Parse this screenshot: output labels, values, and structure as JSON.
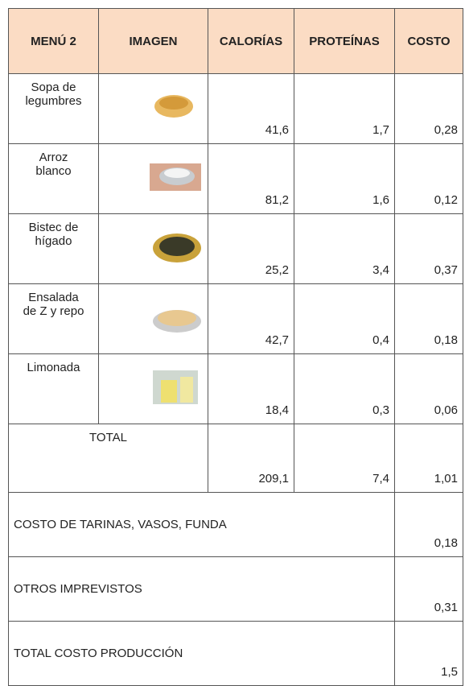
{
  "table": {
    "header": [
      "MENÚ 2",
      "IMAGEN",
      "CALORÍAS",
      "PROTEÍNAS",
      "COSTO"
    ],
    "rows": [
      {
        "name": "Sopa de legumbres",
        "calories": "41,6",
        "proteins": "1,7",
        "cost": "0,28"
      },
      {
        "name": "Arroz blanco",
        "calories": "81,2",
        "proteins": "1,6",
        "cost": "0,12"
      },
      {
        "name": "Bistec de hígado",
        "calories": "25,2",
        "proteins": "3,4",
        "cost": "0,37"
      },
      {
        "name": "Ensalada de Z y repo",
        "calories": "42,7",
        "proteins": "0,4",
        "cost": "0,18"
      },
      {
        "name": "Limonada",
        "calories": "18,4",
        "proteins": "0,3",
        "cost": "0,06"
      }
    ],
    "total": {
      "label": "TOTAL",
      "calories": "209,1",
      "proteins": "7,4",
      "cost": "1,01"
    },
    "extras": [
      {
        "label": "COSTO DE TARINAS, VASOS, FUNDA",
        "cost": "0,18"
      },
      {
        "label": "OTROS IMPREVISTOS",
        "cost": "0,31"
      },
      {
        "label": "TOTAL COSTO PRODUCCIÓN",
        "cost": "1,5"
      }
    ]
  }
}
